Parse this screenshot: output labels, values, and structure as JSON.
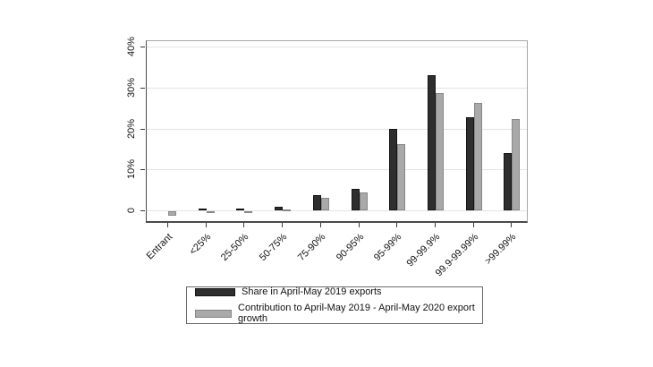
{
  "page": {
    "background_color": "#ffffff"
  },
  "chart_data": {
    "type": "bar",
    "title": "",
    "xlabel": "",
    "ylabel": "",
    "categories": [
      "Entrant",
      "<25%",
      "25-50%",
      "50-75%",
      "75-90%",
      "90-95%",
      "95-99%",
      "99-99.9%",
      "99.9-99.99%",
      ">99.99%"
    ],
    "series": [
      {
        "name": "Share in April-May 2019 exports",
        "color": "#2e2e2e",
        "border_color": "#141414",
        "values": [
          0,
          0.4,
          0.4,
          0.9,
          3.7,
          5.3,
          20,
          33,
          22.8,
          13.9
        ]
      },
      {
        "name": "Contribution to April-May 2019 - April-May 2020 export growth",
        "color": "#a9a9a9",
        "border_color": "#878787",
        "values": [
          -1.2,
          -0.4,
          -0.2,
          0.2,
          3.0,
          4.4,
          16.3,
          28.7,
          26.2,
          22.4
        ]
      }
    ],
    "ytick_values": [
      0,
      10,
      20,
      30,
      40
    ],
    "ytick_labels": [
      "0",
      "10%",
      "20%",
      "30%",
      "40%"
    ],
    "ylim": [
      -2.6,
      41.5
    ],
    "grid": true,
    "legend_position": "bottom-center",
    "gridline_color": "#e4e4e4",
    "axis_color": "#3a3a3a"
  }
}
